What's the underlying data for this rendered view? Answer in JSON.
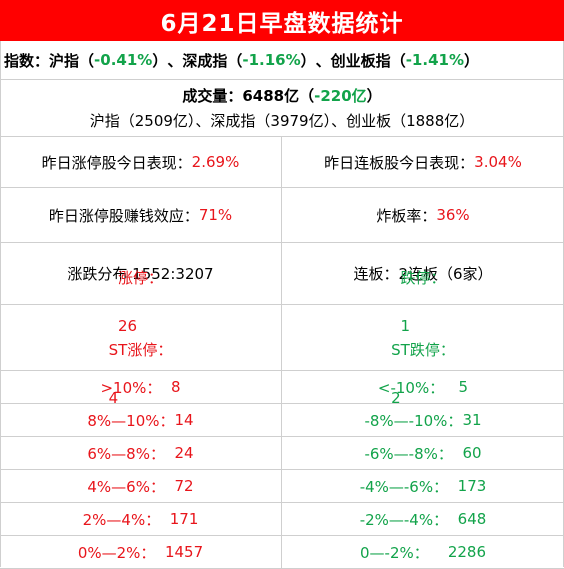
{
  "title": "6月21日早盘数据统计",
  "index": {
    "label": "指数：",
    "sh_name": "沪指",
    "sh_value": "-0.41%",
    "sz_name": "深成指",
    "sz_value": "-1.16%",
    "cy_name": "创业板指",
    "cy_value": "-1.41%",
    "open_paren": "（",
    "close_paren": "）",
    "sep": "、"
  },
  "volume": {
    "label": "成交量：6488亿（",
    "change": "-220亿",
    "close": "）",
    "detail": "沪指（2509亿）、深成指（3979亿）、创业板（1888亿）"
  },
  "stats": {
    "limitup_perf_label": "昨日涨停股今日表现：",
    "limitup_perf_value": "2.69%",
    "consecutive_perf_label": "昨日连板股今日表现：",
    "consecutive_perf_value": "3.04%",
    "money_effect_label": "昨日涨停股赚钱效应：",
    "money_effect_value": "71%",
    "blowup_label": "炸板率：",
    "blowup_value": "36%",
    "distribution": "涨跌分布 1552:3207",
    "consecutive_boards": "连板：2连板（6家）"
  },
  "left_rows": [
    {
      "label": "涨停：",
      "value": "26"
    },
    {
      "label": "ST涨停：",
      "value": "4"
    },
    {
      "label": ">10%：",
      "value": "8"
    },
    {
      "label": "8%—10%：",
      "value": "14"
    },
    {
      "label": "6%—8%：",
      "value": "24"
    },
    {
      "label": "4%—6%：",
      "value": "72"
    },
    {
      "label": "2%—4%：",
      "value": "171"
    },
    {
      "label": "0%—2%：",
      "value": "1457"
    }
  ],
  "right_rows": [
    {
      "label": "跌停：",
      "value": "1"
    },
    {
      "label": "ST跌停：",
      "value": "2"
    },
    {
      "label": "<-10%：",
      "value": "5"
    },
    {
      "label": "-8%—-10%：",
      "value": "31"
    },
    {
      "label": "-6%—-8%：",
      "value": "60"
    },
    {
      "label": "-4%—-6%：",
      "value": "173"
    },
    {
      "label": "-2%—-4%：",
      "value": "648"
    },
    {
      "label": "0—-2%：",
      "value": "2286"
    }
  ],
  "colors": {
    "banner": "#ff0000",
    "up": "#e8151b",
    "down": "#12a34a",
    "border": "#cfcfcf"
  }
}
